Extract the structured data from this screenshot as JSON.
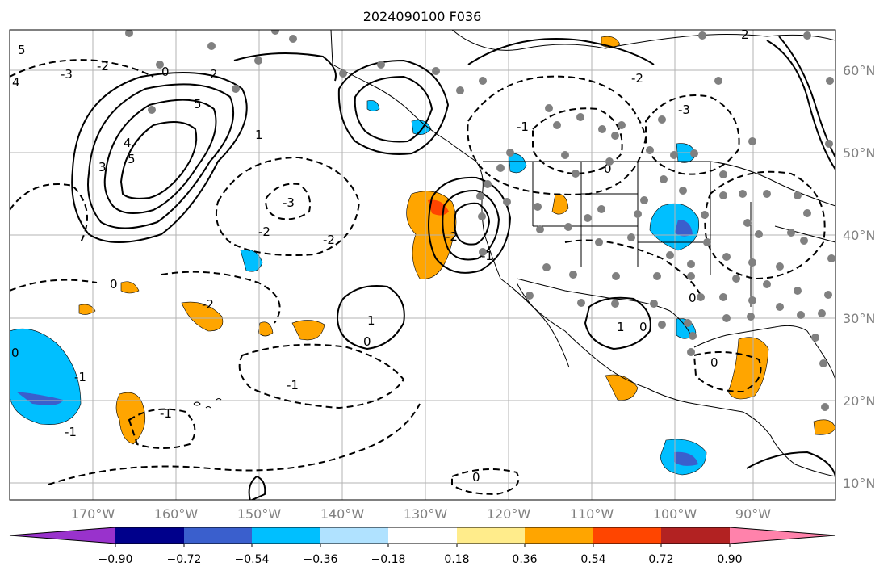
{
  "title": "2024090100 F036",
  "map": {
    "lon_ticks": [
      "170°W",
      "160°W",
      "150°W",
      "140°W",
      "130°W",
      "120°W",
      "110°W",
      "100°W",
      "90°W"
    ],
    "lat_ticks": [
      "60°N",
      "50°N",
      "40°N",
      "30°N",
      "20°N",
      "10°N"
    ],
    "contour_labels": [
      "5",
      "4",
      "-3",
      "-2",
      "0",
      "2",
      "5",
      "4",
      "3",
      "5",
      "1",
      "-3",
      "-2",
      "-2",
      "-2",
      "-1",
      "0",
      "-1",
      "-1",
      "-1",
      "0",
      "1",
      "0",
      "-2",
      "-1",
      "1",
      "0",
      "0",
      "-2",
      "-3",
      "0",
      "-1",
      "0",
      "0",
      "2"
    ]
  },
  "colorbar": {
    "tick_labels": [
      "−0.90",
      "−0.72",
      "−0.54",
      "−0.36",
      "−0.18",
      "0.18",
      "0.36",
      "0.54",
      "0.72",
      "0.90"
    ],
    "colors": [
      "#9932cc",
      "#00008b",
      "#3a5fcd",
      "#00bfff",
      "#b0e2ff",
      "#ffffff",
      "#ffec8b",
      "#ffa500",
      "#ff4500",
      "#b22222",
      "#ff82ab"
    ]
  }
}
